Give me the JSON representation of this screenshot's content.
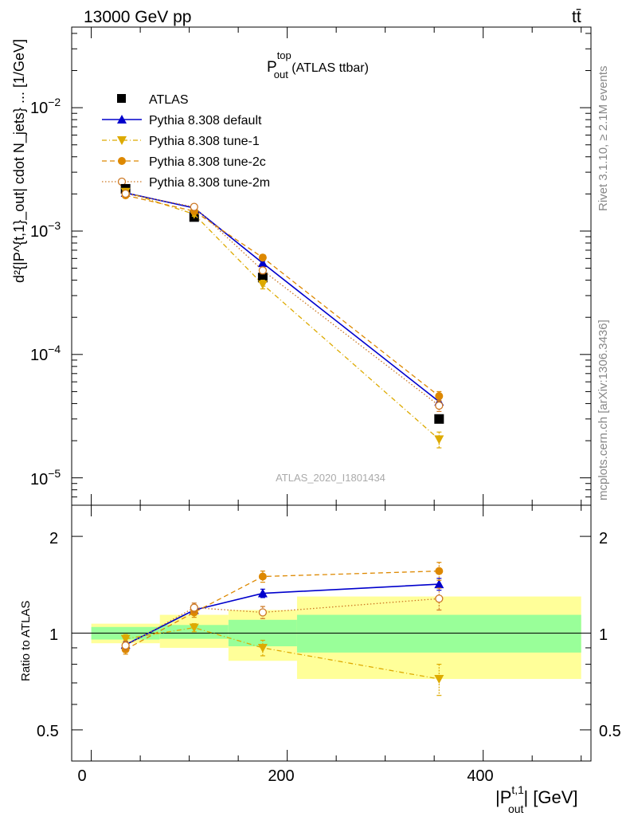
{
  "header": {
    "energy_label": "13000 GeV pp",
    "process_label": "tt̄"
  },
  "side_labels": {
    "rivet": "Rivet 3.1.10, ≥ 2.1M events",
    "mcplots": "mcplots.cern.ch [arXiv:1306.3436]"
  },
  "plot_title": {
    "main": "P",
    "sup": "top",
    "sub": "out",
    "rest": " (ATLAS ttbar)"
  },
  "watermark": "ATLAS_2020_I1801434",
  "axes": {
    "ylabel_top": "d²{|P^{t,1}_out| cdot N_jets} ... [1/GeV]",
    "ylabel_ratio": "Ratio to ATLAS",
    "xlabel_main": "|P",
    "xlabel_sup": "t,1",
    "xlabel_sub": "out",
    "xlabel_unit": "| [GeV]",
    "xticks": [
      "0",
      "200",
      "400"
    ],
    "yticks_top": [
      {
        "base": "10",
        "exp": "−2"
      },
      {
        "base": "10",
        "exp": "−3"
      },
      {
        "base": "10",
        "exp": "−4"
      },
      {
        "base": "10",
        "exp": "−5"
      }
    ],
    "yticks_ratio": [
      "2",
      "1",
      "0.5"
    ]
  },
  "legend": [
    {
      "label": "ATLAS"
    },
    {
      "label": "Pythia 8.308 default"
    },
    {
      "label": "Pythia 8.308 tune-1"
    },
    {
      "label": "Pythia 8.308 tune-2c"
    },
    {
      "label": "Pythia 8.308 tune-2m"
    }
  ],
  "chart_data": [
    {
      "type": "scatter",
      "panel": "main",
      "scale": "log",
      "xlim": [
        -20,
        510
      ],
      "ylim": [
        6e-06,
        0.045
      ],
      "x": [
        35,
        105,
        175,
        355
      ],
      "x_bins": [
        [
          0,
          70
        ],
        [
          70,
          140
        ],
        [
          140,
          210
        ],
        [
          210,
          500
        ]
      ],
      "series": [
        {
          "name": "ATLAS",
          "color": "#000000",
          "marker": "square",
          "line": "none",
          "values": [
            0.0022,
            0.0013,
            0.00042,
            3e-05
          ]
        },
        {
          "name": "Pythia 8.308 default",
          "color": "#0000cc",
          "marker": "triangle-up",
          "line": "solid",
          "values": [
            0.00204,
            0.00154,
            0.00055,
            4.15e-05
          ],
          "errors": [
            5e-05,
            4e-05,
            2e-05,
            3e-06
          ]
        },
        {
          "name": "Pythia 8.308 tune-1",
          "color": "#ddaa00",
          "marker": "triangle-down",
          "line": "dashdot",
          "values": [
            0.00208,
            0.00137,
            0.00037,
            2.05e-05
          ],
          "errors": [
            6e-05,
            5e-05,
            3e-05,
            3e-06
          ]
        },
        {
          "name": "Pythia 8.308 tune-2c",
          "color": "#dd8800",
          "marker": "circle",
          "line": "dashed",
          "values": [
            0.00195,
            0.00145,
            0.00061,
            4.6e-05
          ],
          "errors": [
            6e-05,
            5e-05,
            3e-05,
            4e-06
          ]
        },
        {
          "name": "Pythia 8.308 tune-2m",
          "color": "#cc7722",
          "marker": "circle-open",
          "line": "dotted",
          "values": [
            0.00201,
            0.00157,
            0.00048,
            3.85e-05
          ],
          "errors": [
            6e-05,
            5e-05,
            3e-05,
            4e-06
          ]
        }
      ]
    },
    {
      "type": "scatter",
      "panel": "ratio",
      "scale": "log",
      "xlim": [
        -20,
        510
      ],
      "ylim": [
        0.4,
        2.5
      ],
      "x": [
        35,
        105,
        175,
        355
      ],
      "bands": {
        "inner_color": "#99ff99",
        "outer_color": "#ffff99",
        "bins": [
          {
            "x": [
              0,
              70
            ],
            "inner": [
              0.955,
              1.045
            ],
            "outer": [
              0.93,
              1.07
            ]
          },
          {
            "x": [
              70,
              140
            ],
            "inner": [
              0.96,
              1.06
            ],
            "outer": [
              0.9,
              1.14
            ]
          },
          {
            "x": [
              140,
              210
            ],
            "inner": [
              0.91,
              1.1
            ],
            "outer": [
              0.82,
              1.18
            ]
          },
          {
            "x": [
              210,
              500
            ],
            "inner": [
              0.87,
              1.14
            ],
            "outer": [
              0.72,
              1.3
            ]
          }
        ]
      },
      "series": [
        {
          "name": "Pythia 8.308 default",
          "color": "#0000cc",
          "marker": "triangle-up",
          "line": "solid",
          "values": [
            0.92,
            1.18,
            1.33,
            1.42
          ],
          "errors": [
            0.02,
            0.03,
            0.04,
            0.06
          ]
        },
        {
          "name": "Pythia 8.308 tune-1",
          "color": "#ddaa00",
          "marker": "triangle-down",
          "line": "dashdot",
          "values": [
            0.96,
            1.04,
            0.9,
            0.72
          ],
          "errors": [
            0.03,
            0.03,
            0.05,
            0.08
          ]
        },
        {
          "name": "Pythia 8.308 tune-2c",
          "color": "#dd8800",
          "marker": "circle",
          "line": "dashed",
          "values": [
            0.89,
            1.16,
            1.5,
            1.56
          ],
          "errors": [
            0.03,
            0.04,
            0.06,
            0.1
          ]
        },
        {
          "name": "Pythia 8.308 tune-2m",
          "color": "#cc7722",
          "marker": "circle-open",
          "line": "dotted",
          "values": [
            0.915,
            1.2,
            1.16,
            1.28
          ],
          "errors": [
            0.03,
            0.04,
            0.05,
            0.1
          ]
        }
      ]
    }
  ]
}
